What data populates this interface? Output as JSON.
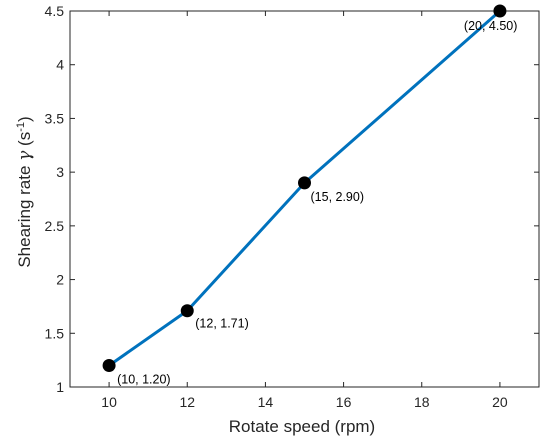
{
  "chart_data": {
    "type": "line",
    "xlabel": "Rotate speed (rpm)",
    "ylabel_parts": {
      "main": "Shearing rate ",
      "symbol": "γ",
      "unit_open": " (s",
      "unit_sup": "-1",
      "unit_close": ")"
    },
    "xlim": [
      9,
      21
    ],
    "ylim": [
      1,
      4.5
    ],
    "xticks": [
      10,
      12,
      14,
      16,
      18,
      20
    ],
    "yticks": [
      1,
      1.5,
      2,
      2.5,
      3,
      3.5,
      4,
      4.5
    ],
    "xtick_labels": [
      "10",
      "12",
      "14",
      "16",
      "18",
      "20"
    ],
    "ytick_labels": [
      "1",
      "1.5",
      "2",
      "2.5",
      "3",
      "3.5",
      "4",
      "4.5"
    ],
    "grid": false,
    "series": [
      {
        "x": [
          10,
          12,
          15,
          20
        ],
        "y": [
          1.2,
          1.71,
          2.9,
          4.5
        ],
        "color": "#0072BD",
        "marker_color": "#000000",
        "labels": [
          "(10, 1.20)",
          "(12, 1.71)",
          "(15, 2.90)",
          "(20, 4.50)"
        ]
      }
    ]
  }
}
